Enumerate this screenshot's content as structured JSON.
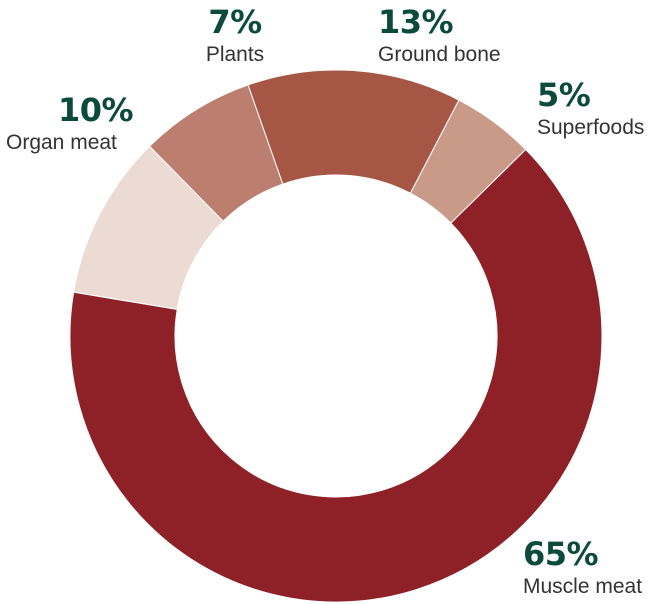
{
  "colors": {
    "label_percent": "#0c4a3e",
    "label_name": "#333333",
    "background": "#ffffff"
  },
  "chart_data": {
    "type": "pie",
    "donut": true,
    "title": "",
    "legend": "none",
    "slices": [
      {
        "name": "Superfoods",
        "value": 5,
        "label": "5%",
        "color": "#c99a88"
      },
      {
        "name": "Muscle meat",
        "value": 65,
        "label": "65%",
        "color": "#8e2027"
      },
      {
        "name": "Organ meat",
        "value": 10,
        "label": "10%",
        "color": "#ecdbd3"
      },
      {
        "name": "Plants",
        "value": 7,
        "label": "7%",
        "color": "#bb7e6f"
      },
      {
        "name": "Ground bone",
        "value": 13,
        "label": "13%",
        "color": "#a55645"
      }
    ]
  }
}
